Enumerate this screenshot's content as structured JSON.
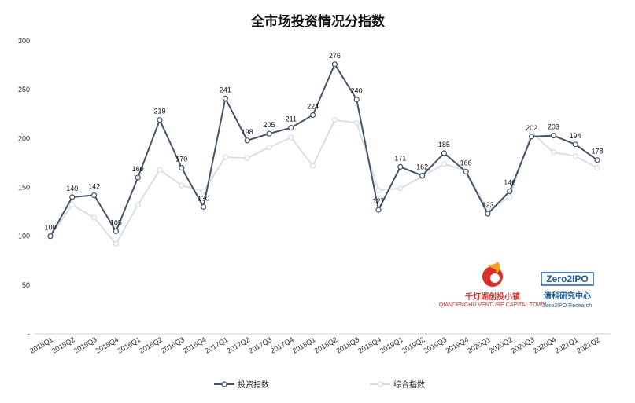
{
  "chart_data": {
    "type": "line",
    "title": "全市场投资情况分指数",
    "categories": [
      "2015Q1",
      "2015Q2",
      "2015Q3",
      "2015Q4",
      "2016Q1",
      "2016Q2",
      "2016Q3",
      "2016Q4",
      "2017Q1",
      "2017Q2",
      "2017Q3",
      "2017Q4",
      "2018Q1",
      "2018Q2",
      "2018Q3",
      "2018Q4",
      "2019Q1",
      "2019Q2",
      "2019Q3",
      "2019Q4",
      "2020Q1",
      "2020Q2",
      "2020Q3",
      "2020Q4",
      "2021Q1",
      "2021Q2"
    ],
    "ylim": [
      0,
      300
    ],
    "yticks": [
      "-",
      "50",
      "100",
      "150",
      "200",
      "250",
      "300"
    ],
    "ytick_values": [
      0,
      50,
      100,
      150,
      200,
      250,
      300
    ],
    "grid": false,
    "legend_placement": "bottom",
    "series": [
      {
        "name": "投资指数",
        "color": "#44546a",
        "labels_shown": true,
        "values": [
          100,
          140,
          142,
          105,
          160,
          219,
          170,
          130,
          241,
          198,
          205,
          211,
          224,
          276,
          240,
          127,
          171,
          162,
          185,
          166,
          123,
          146,
          202,
          203,
          194,
          178
        ]
      },
      {
        "name": "综合指数",
        "color": "#d6dce4",
        "labels_shown": false,
        "values": [
          100,
          132,
          119,
          92,
          132,
          168,
          152,
          146,
          181,
          180,
          191,
          201,
          172,
          219,
          216,
          147,
          149,
          161,
          174,
          167,
          127,
          140,
          206,
          186,
          182,
          170
        ]
      }
    ]
  },
  "logos": {
    "left": {
      "name": "千灯湖创投小镇",
      "subtitle": "QIANDENGHU VENTURE CAPITAL TOWN",
      "icon": "flame-logo-icon",
      "color": "#d9302c"
    },
    "right": {
      "badge_text": "Zero2IPO",
      "name": "清科研究中心",
      "subtitle": "Zero2IPO Research",
      "icon": "zero2ipo-logo-icon",
      "color": "#1f5fa8"
    }
  }
}
